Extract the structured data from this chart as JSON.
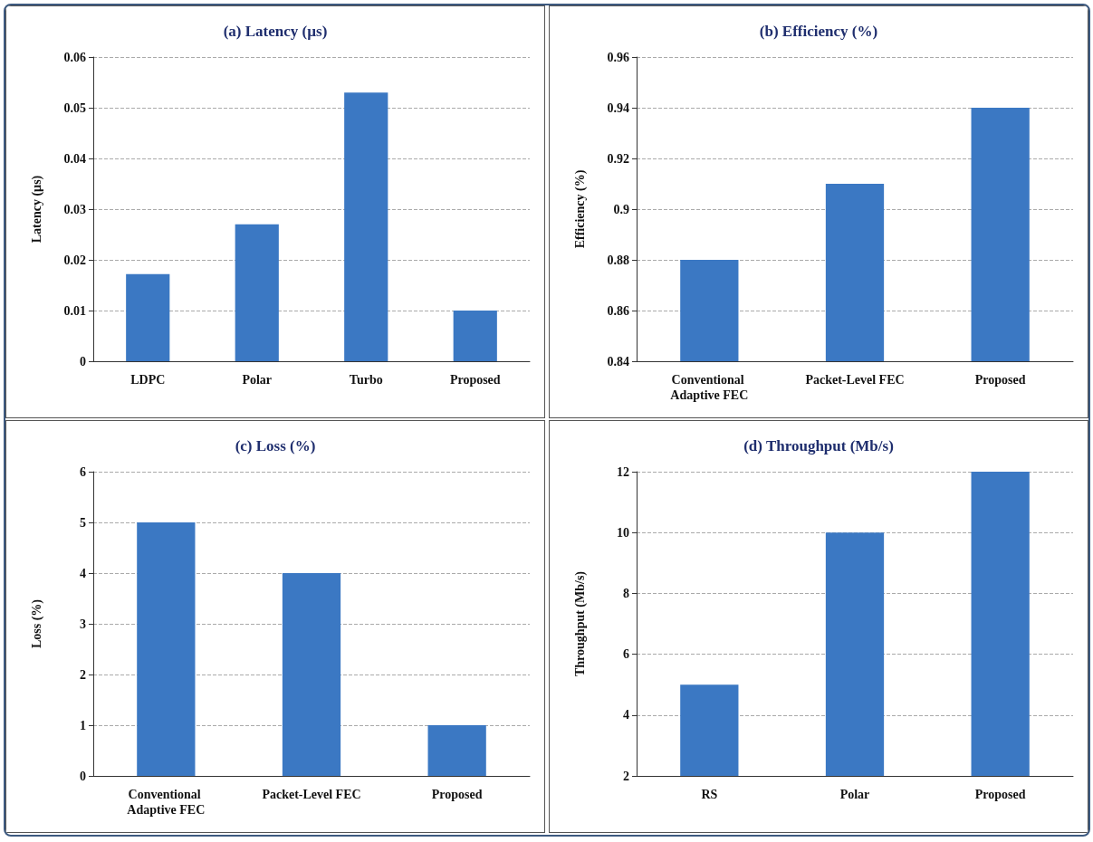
{
  "chart_data": [
    {
      "type": "bar",
      "title": "(a) Latency (µs)",
      "ylabel": "Latency (µs)",
      "categories": [
        "LDPC",
        "Polar",
        "Turbo",
        "Proposed"
      ],
      "values": [
        0.0172,
        0.027,
        0.053,
        0.01
      ],
      "color": "#3b78c3",
      "ylim": [
        0,
        0.06
      ],
      "yticks": [
        0,
        0.01,
        0.02,
        0.03,
        0.04,
        0.05,
        0.06
      ],
      "grid": "y"
    },
    {
      "type": "bar",
      "title": "(b) Efficiency (%)",
      "ylabel": "Efficiency (%)",
      "categories": [
        "Conventional Adaptive FEC",
        "Packet-Level FEC",
        "Proposed"
      ],
      "values": [
        0.88,
        0.91,
        0.94
      ],
      "color": "#3b78c3",
      "ylim": [
        0.84,
        0.96
      ],
      "yticks": [
        0.84,
        0.86,
        0.88,
        0.9,
        0.92,
        0.94,
        0.96
      ],
      "grid": "y"
    },
    {
      "type": "bar",
      "title": "(c) Loss (%)",
      "ylabel": "Loss (%)",
      "categories": [
        "Conventional Adaptive FEC",
        "Packet-Level FEC",
        "Proposed"
      ],
      "values": [
        5,
        4,
        1
      ],
      "color": "#3b78c3",
      "ylim": [
        0,
        6
      ],
      "yticks": [
        0,
        1,
        2,
        3,
        4,
        5,
        6
      ],
      "grid": "y"
    },
    {
      "type": "bar",
      "title": "(d) Throughput (Mb/s)",
      "ylabel": "Throughput (Mb/s)",
      "categories": [
        "RS",
        "Polar",
        "Proposed"
      ],
      "values": [
        5,
        10,
        12
      ],
      "color": "#3b78c3",
      "ylim": [
        2,
        12
      ],
      "yticks": [
        2,
        4,
        6,
        8,
        10,
        12
      ],
      "grid": "y"
    }
  ]
}
